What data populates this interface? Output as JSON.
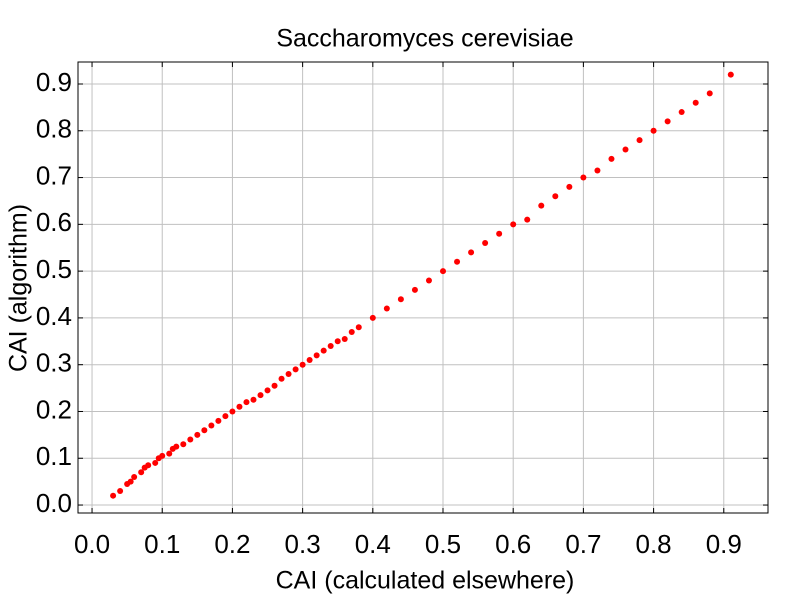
{
  "chart_data": {
    "type": "scatter",
    "title": "Saccharomyces cerevisiae",
    "xlabel": "CAI (calculated elsewhere)",
    "ylabel": "CAI (algorithm)",
    "color": "#ff0000",
    "grid": true,
    "x": [
      0.03,
      0.04,
      0.05,
      0.055,
      0.06,
      0.07,
      0.075,
      0.08,
      0.09,
      0.095,
      0.1,
      0.11,
      0.115,
      0.12,
      0.13,
      0.14,
      0.15,
      0.16,
      0.17,
      0.18,
      0.19,
      0.2,
      0.21,
      0.22,
      0.23,
      0.24,
      0.25,
      0.26,
      0.27,
      0.28,
      0.29,
      0.3,
      0.31,
      0.32,
      0.33,
      0.34,
      0.35,
      0.36,
      0.37,
      0.38,
      0.4,
      0.42,
      0.44,
      0.46,
      0.48,
      0.5,
      0.52,
      0.54,
      0.56,
      0.58,
      0.6,
      0.62,
      0.64,
      0.66,
      0.68,
      0.7,
      0.72,
      0.74,
      0.76,
      0.78,
      0.8,
      0.82,
      0.84,
      0.86,
      0.88,
      0.91
    ],
    "values": [
      0.02,
      0.03,
      0.045,
      0.05,
      0.06,
      0.07,
      0.08,
      0.085,
      0.09,
      0.1,
      0.105,
      0.11,
      0.12,
      0.125,
      0.13,
      0.14,
      0.15,
      0.16,
      0.17,
      0.18,
      0.19,
      0.2,
      0.21,
      0.22,
      0.225,
      0.235,
      0.245,
      0.255,
      0.27,
      0.28,
      0.29,
      0.3,
      0.31,
      0.32,
      0.33,
      0.34,
      0.35,
      0.355,
      0.37,
      0.38,
      0.4,
      0.42,
      0.44,
      0.46,
      0.48,
      0.5,
      0.52,
      0.54,
      0.56,
      0.58,
      0.6,
      0.61,
      0.64,
      0.66,
      0.68,
      0.7,
      0.715,
      0.74,
      0.76,
      0.78,
      0.8,
      0.82,
      0.84,
      0.86,
      0.88,
      0.92
    ],
    "xlim": [
      -0.02,
      0.963
    ],
    "ylim": [
      -0.017,
      0.947
    ],
    "xticks": [
      {
        "value": 0,
        "label": "0.0"
      },
      0.1,
      0.2,
      0.3,
      0.4,
      0.5,
      0.6,
      0.7,
      0.8,
      0.9
    ],
    "yticks": [
      {
        "value": 0,
        "label": "0.0"
      },
      0.1,
      0.2,
      0.3,
      0.4,
      0.5,
      0.6,
      0.7,
      0.8,
      0.9
    ]
  }
}
